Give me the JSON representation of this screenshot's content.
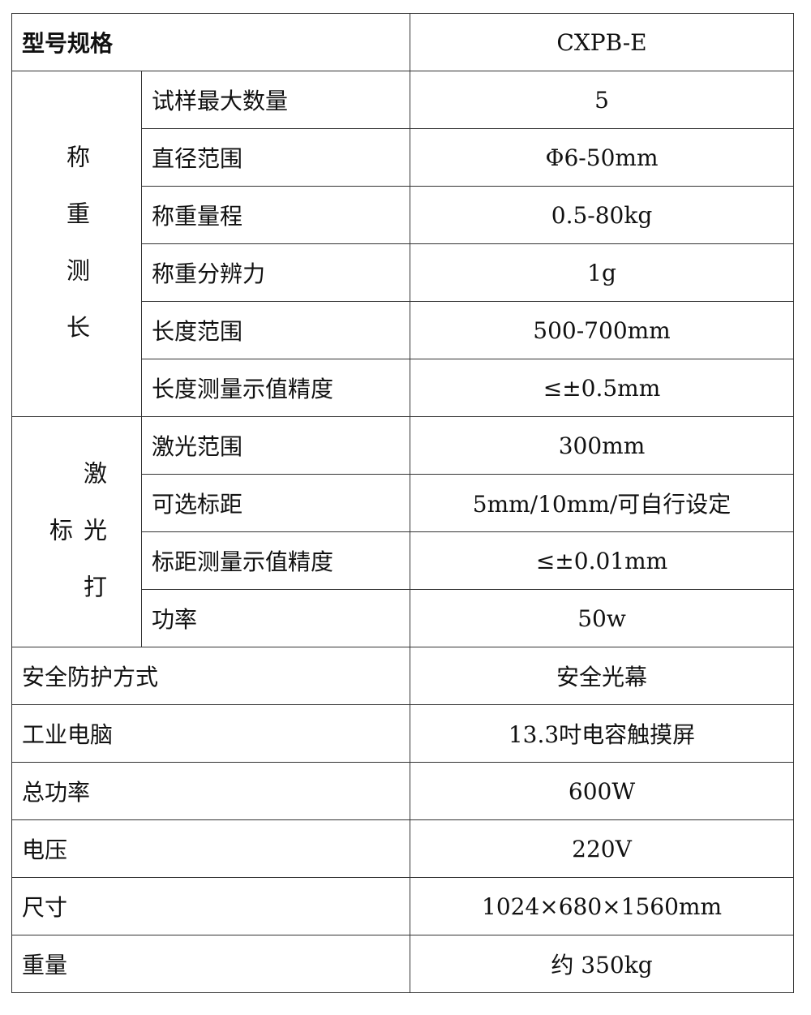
{
  "header": {
    "label": "型号规格",
    "value": "CXPB-E"
  },
  "groups": [
    {
      "label": "称重测长",
      "rows": [
        {
          "label": "试样最大数量",
          "value": "5"
        },
        {
          "label": "直径范围",
          "value": "Φ6-50mm"
        },
        {
          "label": "称重量程",
          "value": "0.5-80kg"
        },
        {
          "label": "称重分辨力",
          "value": "1g"
        },
        {
          "label": "长度范围",
          "value": "500-700mm"
        },
        {
          "label": "长度测量示值精度",
          "value": "≤±0.5mm"
        }
      ]
    },
    {
      "label": "激光打标",
      "rows": [
        {
          "label": "激光范围",
          "value": "300mm"
        },
        {
          "label": "可选标距",
          "value": "5mm/10mm/可自行设定"
        },
        {
          "label": "标距测量示值精度",
          "value": "≤±0.01mm"
        },
        {
          "label": "功率",
          "value": "50w"
        }
      ]
    }
  ],
  "rows": [
    {
      "label": "安全防护方式",
      "value": "安全光幕"
    },
    {
      "label": "工业电脑",
      "value": "13.3吋电容触摸屏"
    },
    {
      "label": "总功率",
      "value": "600W"
    },
    {
      "label": "电压",
      "value": "220V"
    },
    {
      "label": "尺寸",
      "value": "1024×680×1560mm"
    },
    {
      "label": "重量",
      "value": "约 350kg"
    }
  ]
}
